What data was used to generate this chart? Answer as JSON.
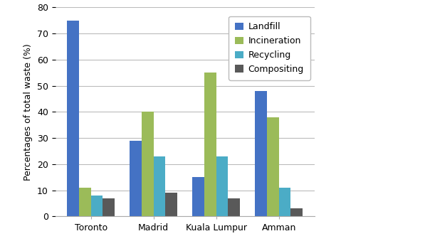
{
  "categories": [
    "Toronto",
    "Madrid",
    "Kuala Lumpur",
    "Amman"
  ],
  "series": {
    "Landfill": [
      75,
      29,
      15,
      48
    ],
    "Incineration": [
      11,
      40,
      55,
      38
    ],
    "Recycling": [
      8,
      23,
      23,
      11
    ],
    "Compositing": [
      7,
      9,
      7,
      3
    ]
  },
  "colors": {
    "Landfill": "#4472C4",
    "Incineration": "#9BBB59",
    "Recycling": "#4BACC6",
    "Compositing": "#595959"
  },
  "ylabel": "Percentages of total waste (%)",
  "ylim": [
    0,
    80
  ],
  "yticks": [
    0,
    10,
    20,
    30,
    40,
    50,
    60,
    70,
    80
  ],
  "bar_width": 0.19,
  "background_color": "#FFFFFF",
  "grid_color": "#BBBBBB",
  "font_size_labels": 9,
  "font_size_legend": 9,
  "font_size_ticks": 9
}
